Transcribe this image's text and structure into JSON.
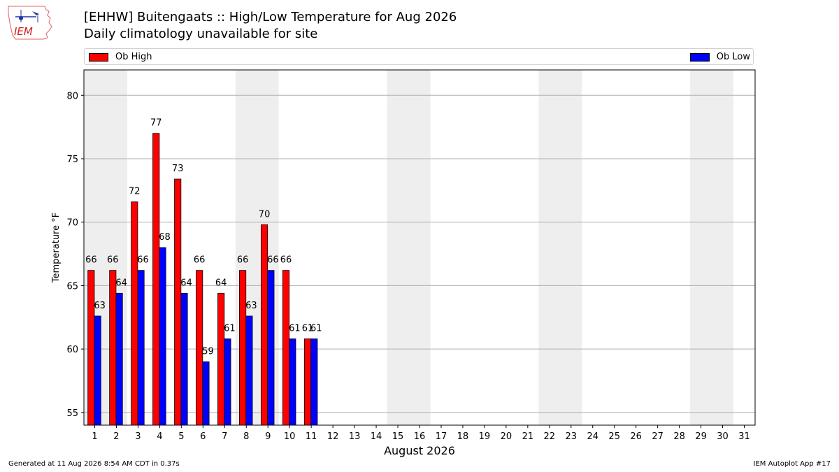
{
  "header": {
    "logo_text": "IEM",
    "title": "[EHHW] Buitengaats :: High/Low Temperature for Aug 2026",
    "subtitle": "Daily climatology unavailable for site"
  },
  "footer": {
    "left": "Generated at 11 Aug 2026 8:54 AM CDT in 0.37s",
    "right": "IEM Autoplot App #17"
  },
  "colors": {
    "high": "#ff0000",
    "low": "#0000ff",
    "weekend_band": "#eeeeee",
    "grid": "#b0b0b0"
  },
  "chart_data": {
    "type": "bar",
    "title": "[EHHW] Buitengaats :: High/Low Temperature for Aug 2026",
    "subtitle": "Daily climatology unavailable for site",
    "xlabel": "August 2026",
    "ylabel": "Temperature °F",
    "x": [
      1,
      2,
      3,
      4,
      5,
      6,
      7,
      8,
      9,
      10,
      11,
      12,
      13,
      14,
      15,
      16,
      17,
      18,
      19,
      20,
      21,
      22,
      23,
      24,
      25,
      26,
      27,
      28,
      29,
      30,
      31
    ],
    "xlim": [
      0.5,
      31.5
    ],
    "ylim": [
      54,
      82
    ],
    "yticks": [
      55,
      60,
      65,
      70,
      75,
      80
    ],
    "grid": "horizontal",
    "legend_position": "top",
    "weekend_bands": [
      [
        1,
        2
      ],
      [
        8,
        9
      ],
      [
        15,
        16
      ],
      [
        22,
        23
      ],
      [
        29,
        30
      ]
    ],
    "series": [
      {
        "name": "Ob High",
        "color": "#ff0000",
        "x": [
          1,
          2,
          3,
          4,
          5,
          6,
          7,
          8,
          9,
          10,
          11
        ],
        "values": [
          66.2,
          66.2,
          71.6,
          77.0,
          73.4,
          66.2,
          64.4,
          66.2,
          69.8,
          66.2,
          60.8
        ],
        "labels": [
          "66",
          "66",
          "72",
          "77",
          "73",
          "66",
          "64",
          "66",
          "70",
          "66",
          "61"
        ]
      },
      {
        "name": "Ob Low",
        "color": "#0000ff",
        "x": [
          1,
          2,
          3,
          4,
          5,
          6,
          7,
          8,
          9,
          10,
          11
        ],
        "values": [
          62.6,
          64.4,
          66.2,
          68.0,
          64.4,
          59.0,
          60.8,
          62.6,
          66.2,
          60.8,
          60.8
        ],
        "labels": [
          "63",
          "64",
          "66",
          "68",
          "64",
          "59",
          "61",
          "63",
          "66",
          "61",
          "61"
        ]
      }
    ]
  }
}
